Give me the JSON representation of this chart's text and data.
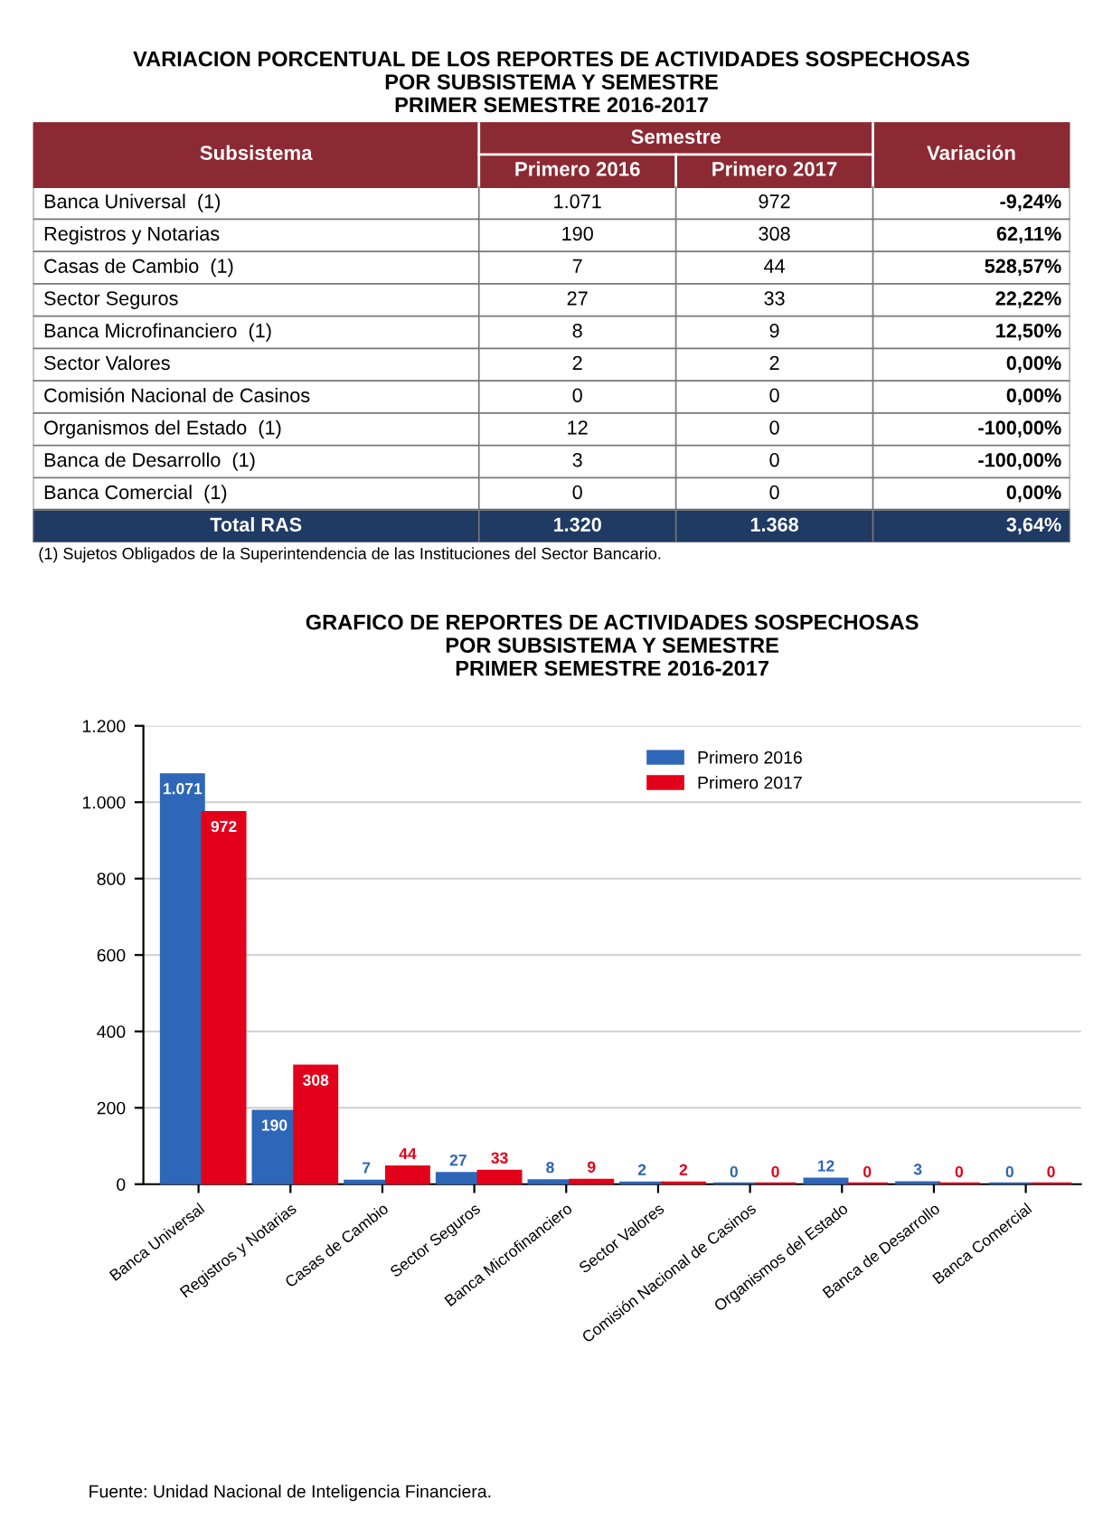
{
  "chart_data": [
    {
      "type": "other",
      "title": "VARIACION PORCENTUAL DE LOS REPORTES DE ACTIVIDADES SOSPECHOSAS\nPOR SUBSISTEMA Y SEMESTRE\nPRIMER SEMESTRE 2016-2017",
      "xlabel": "Subsistema",
      "legend_title": "Semestre",
      "categories": [
        "Banca Universal  (1)",
        "Registros y Notarias",
        "Casas de Cambio  (1)",
        "Sector Seguros",
        "Banca Microfinanciero  (1)",
        "Sector Valores",
        "Comisión Nacional de Casinos",
        "Organismos del Estado  (1)",
        "Banca de Desarrollo  (1)",
        "Banca Comercial  (1)",
        "Total RAS"
      ],
      "series": [
        {
          "name": "Primero 2016",
          "values": [
            1071,
            190,
            7,
            27,
            8,
            2,
            0,
            12,
            3,
            0,
            1320
          ],
          "value_labels": [
            "1.071",
            "190",
            "7",
            "27",
            "8",
            "2",
            "0",
            "12",
            "3",
            "0",
            "1.320"
          ]
        },
        {
          "name": "Primero 2017",
          "values": [
            972,
            308,
            44,
            33,
            9,
            2,
            0,
            0,
            0,
            0,
            1368
          ],
          "value_labels": [
            "972",
            "308",
            "44",
            "33",
            "9",
            "2",
            "0",
            "0",
            "0",
            "0",
            "1.368"
          ]
        },
        {
          "name": "Variación",
          "values": [
            -9.24,
            62.11,
            528.57,
            22.22,
            12.5,
            0,
            0,
            -100,
            -100,
            0,
            3.64
          ],
          "value_labels": [
            "-9,24%",
            "62,11%",
            "528,57%",
            "22,22%",
            "12,50%",
            "0,00%",
            "0,00%",
            "-100,00%",
            "-100,00%",
            "0,00%",
            "3,64%"
          ]
        }
      ],
      "annotations": [
        "(1) Sujetos Obligados de la Superintendencia de las Instituciones del Sector Bancario."
      ]
    },
    {
      "type": "bar",
      "title": "GRAFICO DE REPORTES DE ACTIVIDADES SOSPECHOSAS\nPOR SUBSISTEMA Y SEMESTRE\nPRIMER SEMESTRE 2016-2017",
      "categories": [
        "Banca Universal",
        "Registros y Notarias",
        "Casas de Cambio",
        "Sector Seguros",
        "Banca Microfinanciero",
        "Sector Valores",
        "Comisión Nacional de Casinos",
        "Organismos del Estado",
        "Banca de Desarrollo",
        "Banca Comercial"
      ],
      "series": [
        {
          "name": "Primero 2016",
          "color": "#2e66b8",
          "values": [
            1071,
            190,
            7,
            27,
            8,
            2,
            0,
            12,
            3,
            0
          ],
          "value_labels": [
            "1.071",
            "190",
            "7",
            "27",
            "8",
            "2",
            "0",
            "12",
            "3",
            "0"
          ]
        },
        {
          "name": "Primero 2017",
          "color": "#e3001b",
          "values": [
            972,
            308,
            44,
            33,
            9,
            2,
            0,
            0,
            0,
            0
          ],
          "value_labels": [
            "972",
            "308",
            "44",
            "33",
            "9",
            "2",
            "0",
            "0",
            "0",
            "0"
          ]
        }
      ],
      "ylim": [
        0,
        1200
      ],
      "yticks": [
        0,
        200,
        400,
        600,
        800,
        {
          "value": 1000,
          "label": "1.000"
        },
        {
          "value": 1200,
          "label": "1.200"
        }
      ],
      "grid": "y",
      "legend": "top right",
      "annotations": [
        "Fuente: Unidad Nacional de Inteligencia Financiera."
      ]
    }
  ]
}
